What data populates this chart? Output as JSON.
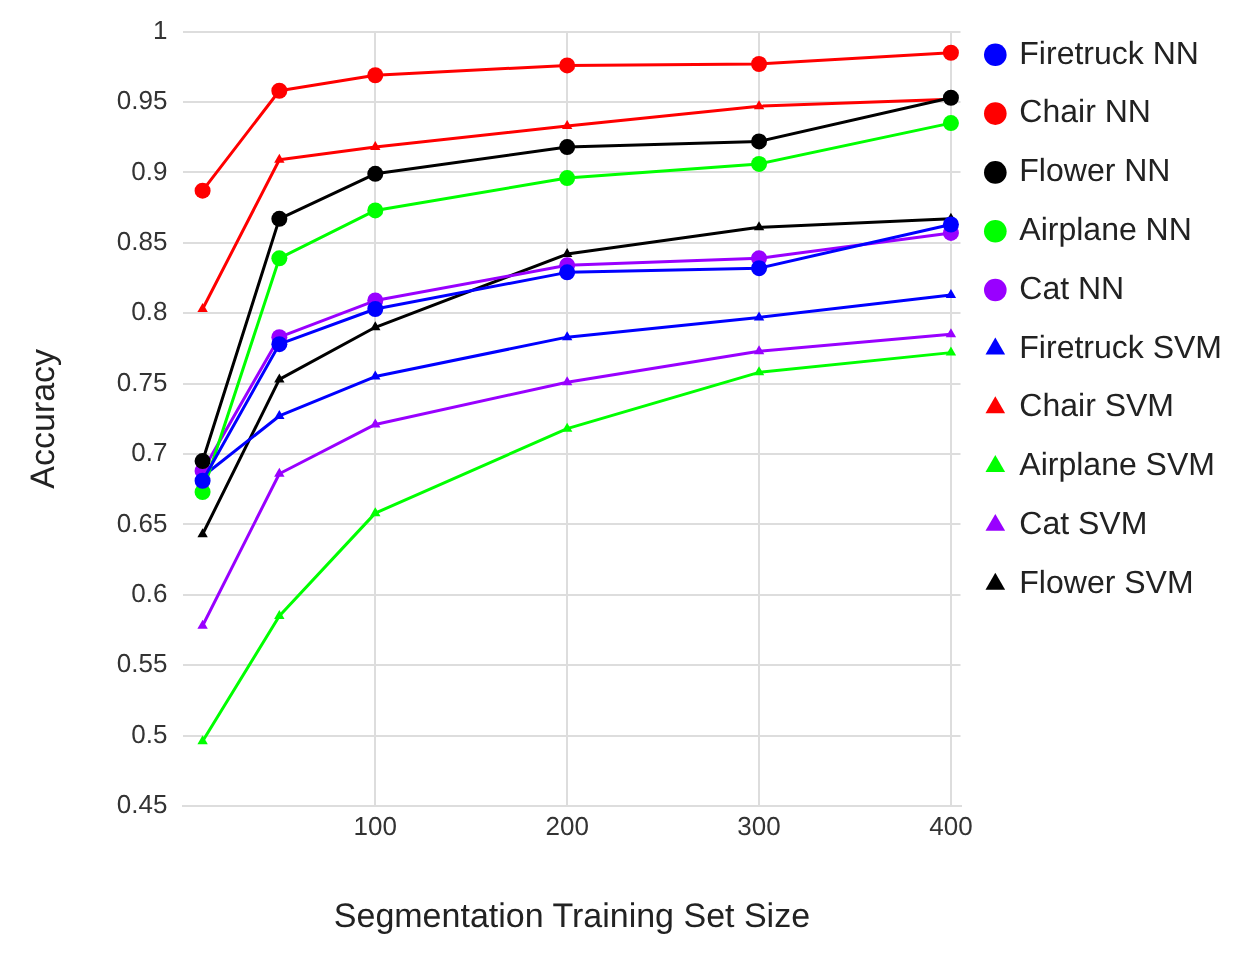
{
  "chart_data": {
    "type": "line",
    "xlabel": "Segmentation Training Set Size",
    "ylabel": "Accuracy",
    "x": [
      10,
      50,
      100,
      200,
      300,
      400
    ],
    "xlim": [
      0,
      405
    ],
    "xticks": [
      100,
      200,
      300,
      400
    ],
    "ylim": [
      0.45,
      1
    ],
    "yticks": [
      0.45,
      0.5,
      0.55,
      0.6,
      0.65,
      0.7,
      0.75,
      0.8,
      0.85,
      0.9,
      0.95,
      1
    ],
    "grid": true,
    "legend": "right",
    "series": [
      {
        "name": "Firetruck NN",
        "color": "#0000ff",
        "marker": "circle",
        "values": [
          0.681,
          0.778,
          0.803,
          0.829,
          0.832,
          0.863
        ]
      },
      {
        "name": "Chair NN",
        "color": "#ff0000",
        "marker": "circle",
        "values": [
          0.887,
          0.958,
          0.969,
          0.976,
          0.977,
          0.985
        ]
      },
      {
        "name": "Flower NN",
        "color": "#000000",
        "marker": "circle",
        "values": [
          0.695,
          0.867,
          0.899,
          0.918,
          0.922,
          0.953
        ]
      },
      {
        "name": "Airplane NN",
        "color": "#00ff00",
        "marker": "circle",
        "values": [
          0.673,
          0.839,
          0.873,
          0.896,
          0.906,
          0.935
        ]
      },
      {
        "name": "Cat NN",
        "color": "#9900ff",
        "marker": "circle",
        "values": [
          0.688,
          0.783,
          0.809,
          0.834,
          0.839,
          0.857
        ]
      },
      {
        "name": "Firetruck SVM",
        "color": "#0000ff",
        "marker": "triangle",
        "values": [
          0.684,
          0.727,
          0.755,
          0.783,
          0.797,
          0.813
        ]
      },
      {
        "name": "Chair SVM",
        "color": "#ff0000",
        "marker": "triangle",
        "values": [
          0.803,
          0.909,
          0.918,
          0.933,
          0.947,
          0.952
        ]
      },
      {
        "name": "Airplane SVM",
        "color": "#00ff00",
        "marker": "triangle",
        "values": [
          0.496,
          0.585,
          0.658,
          0.718,
          0.758,
          0.772
        ]
      },
      {
        "name": "Cat SVM",
        "color": "#9900ff",
        "marker": "triangle",
        "values": [
          0.578,
          0.686,
          0.721,
          0.751,
          0.773,
          0.785
        ]
      },
      {
        "name": "Flower SVM",
        "color": "#000000",
        "marker": "triangle",
        "values": [
          0.643,
          0.753,
          0.79,
          0.842,
          0.861,
          0.867
        ]
      }
    ]
  }
}
